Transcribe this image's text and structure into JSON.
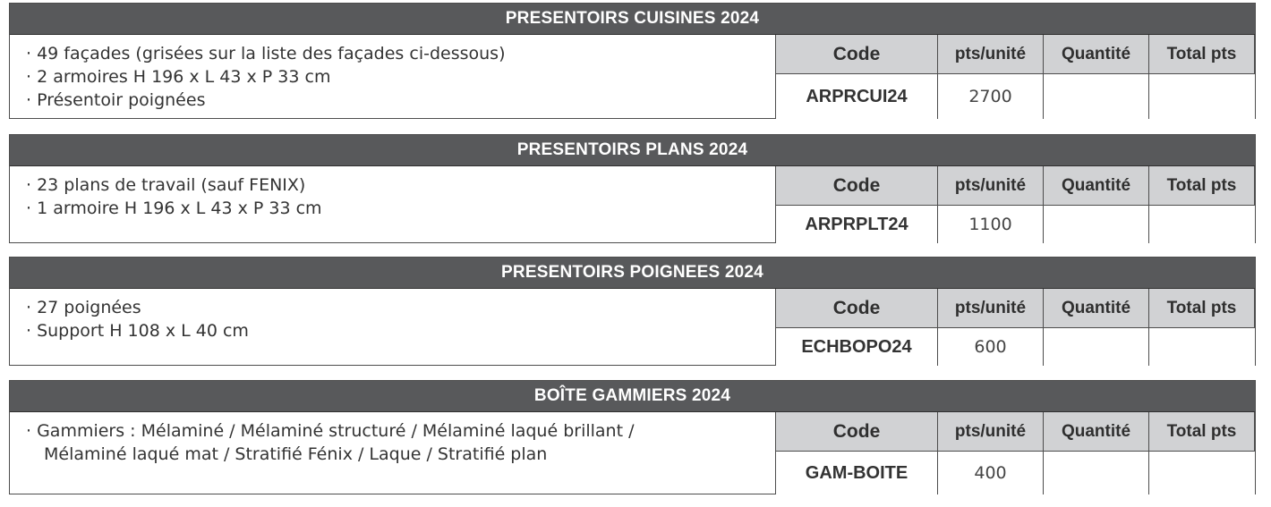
{
  "columns": {
    "code": "Code",
    "pts": "pts/unité",
    "qty": "Quantité",
    "total": "Total pts"
  },
  "blocks": [
    {
      "title": "PRESENTOIRS CUISINES 2024",
      "lines": [
        "· 49 façades (grisées sur la liste des façades ci-dessous)",
        "· 2 armoires H 196 x L 43 x P 33 cm",
        "· Présentoir poignées"
      ],
      "code": "ARPRCUI24",
      "pts": "2700",
      "qty": "",
      "total": ""
    },
    {
      "title": "PRESENTOIRS PLANS 2024",
      "lines": [
        "· 23 plans de travail (sauf FENIX)",
        "· 1 armoire H 196 x L 43 x P 33 cm"
      ],
      "code": "ARPRPLT24",
      "pts": "1100",
      "qty": "",
      "total": ""
    },
    {
      "title": "PRESENTOIRS POIGNEES 2024",
      "lines": [
        "· 27 poignées",
        "· Support H 108 x L 40 cm"
      ],
      "code": "ECHBOPO24",
      "pts": "600",
      "qty": "",
      "total": ""
    },
    {
      "title": "BOÎTE GAMMIERS 2024",
      "lines": [
        "· Gammiers : Mélaminé / Mélaminé structuré / Mélaminé laqué brillant /",
        "Mélaminé laqué mat / Stratifié Fénix / Laque / Stratifié plan"
      ],
      "code": "GAM-BOITE",
      "pts": "400",
      "qty": "",
      "total": ""
    }
  ]
}
